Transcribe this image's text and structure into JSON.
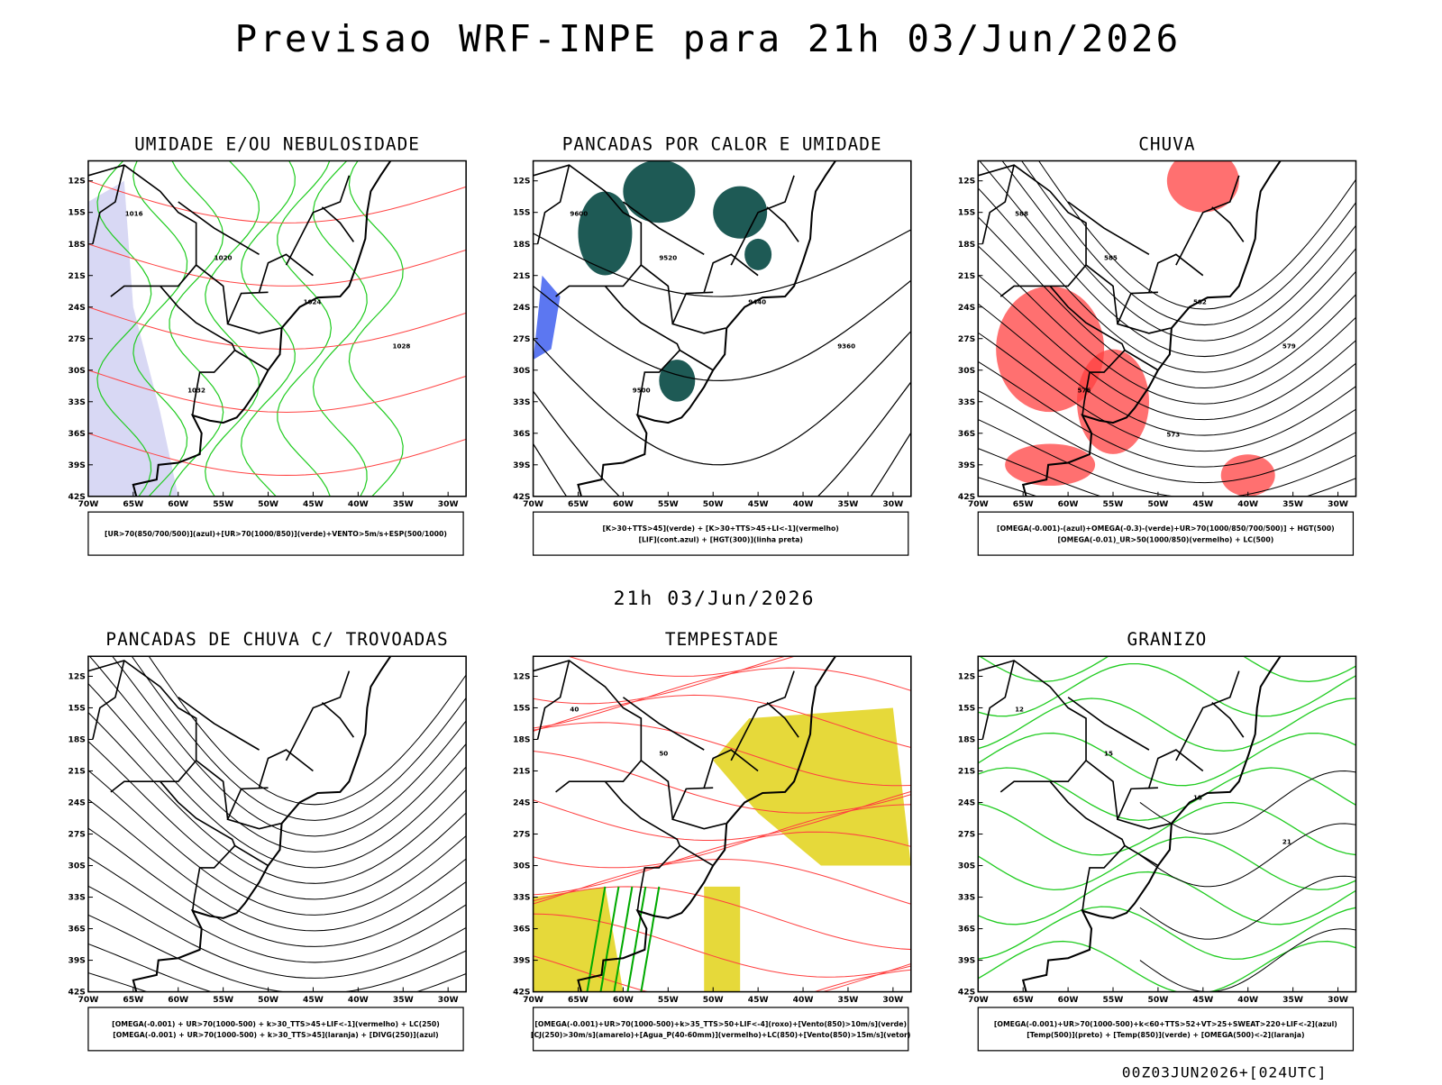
{
  "header": {
    "title": "Previsao WRF-INPE  para 21h 03/Jun/2026"
  },
  "subtitle": "21h 03/Jun/2026",
  "footer": "00Z03JUN2026+[024UTC]",
  "lat_labels": [
    "12S",
    "15S",
    "18S",
    "21S",
    "24S",
    "27S",
    "30S",
    "33S",
    "36S",
    "39S",
    "42S"
  ],
  "lon_labels": [
    "70W",
    "65W",
    "60W",
    "55W",
    "50W",
    "45W",
    "40W",
    "35W",
    "30W"
  ],
  "panels": [
    {
      "title": "UMIDADE E/OU NEBULOSIDADE",
      "legend": [
        "[UR>70(850/700/500)](azul)+[UR>70(1000/850)](verde)+VENTO>5m/s+ESP(500/1000)"
      ],
      "contour_labels": [
        "1016",
        "1020",
        "1024",
        "1028",
        "1032"
      ]
    },
    {
      "title": "PANCADAS POR CALOR E UMIDADE",
      "legend": [
        "[K>30+TTS>45](verde) + [K>30+TTS>45+LI<-1](vermelho)",
        "[LIF](cont.azul) + [HGT(300)](linha preta)"
      ],
      "contour_labels": [
        "9600",
        "9520",
        "9440",
        "9360",
        "9500"
      ]
    },
    {
      "title": "CHUVA",
      "legend": [
        "[OMEGA(-0.001)-(azul)+OMEGA(-0.3)-(verde)+UR>70(1000/850/700/500)] + HGT(500)",
        "[OMEGA(-0.01)_UR>50(1000/850)(vermelho) + LC(500)"
      ],
      "contour_labels": [
        "588",
        "585",
        "582",
        "579",
        "576",
        "573"
      ]
    },
    {
      "title": "PANCADAS DE CHUVA C/ TROVOADAS",
      "legend": [
        "[OMEGA(-0.001) + UR>70(1000-500) + k>30_TTS>45+LIF<-1](vermelho) + LC(250)",
        "[OMEGA(-0.001) + UR>70(1000-500) + k>30_TTS>45](laranja) + [DIVG(250)](azul)"
      ],
      "contour_labels": []
    },
    {
      "title": "TEMPESTADE",
      "legend": [
        "[OMEGA(-0.001)+UR>70(1000-500)+k>35_TTS>50+LIF<-4](roxo)+[Vento(850)>10m/s](verde)",
        "[CJ(250)>30m/s](amarelo)+[Agua_P(40-60mm)](vermelho)+LC(850)+[Vento(850)>15m/s](vetor)"
      ],
      "contour_labels": [
        "40",
        "50"
      ]
    },
    {
      "title": "GRANIZO",
      "legend": [
        "[OMEGA(-0.001)+UR>70(1000-500)+k<60+TTS>52+VT>25+SWEAT>220+LIF<-2](azul)",
        "[Temp(500)](preto) + [Temp(850)](verde) + [OMEGA(500)<-2](laranja)"
      ],
      "contour_labels": [
        "12",
        "15",
        "18",
        "21"
      ]
    }
  ]
}
